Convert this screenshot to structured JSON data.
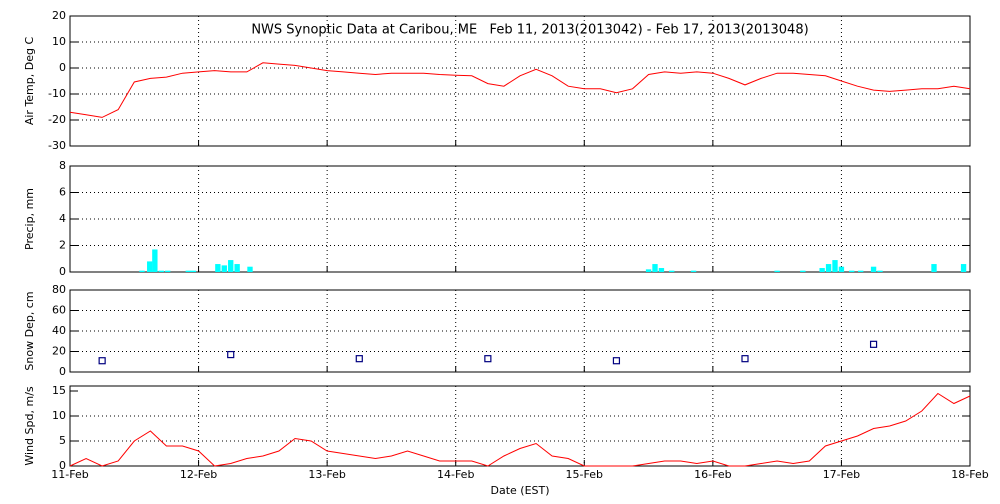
{
  "chart_data": [
    {
      "type": "line",
      "title": "NWS Synoptic Data at Caribou, ME   Feb 11, 2013(2013042) - Feb 17, 2013(2013048)",
      "ylabel": "Air Temp, Deg C",
      "color": "#ff0000",
      "grid": true,
      "xlim": [
        0,
        7
      ],
      "xticks": [
        0,
        1,
        2,
        3,
        4,
        5,
        6,
        7
      ],
      "ylim": [
        -30,
        20
      ],
      "yticks": [
        -30,
        -20,
        -10,
        0,
        10,
        20
      ],
      "x": [
        0,
        0.125,
        0.25,
        0.375,
        0.5,
        0.625,
        0.75,
        0.875,
        1,
        1.125,
        1.25,
        1.375,
        1.5,
        1.625,
        1.75,
        1.875,
        2,
        2.125,
        2.25,
        2.375,
        2.5,
        2.625,
        2.75,
        2.875,
        3,
        3.125,
        3.25,
        3.375,
        3.5,
        3.625,
        3.75,
        3.875,
        4,
        4.125,
        4.25,
        4.375,
        4.5,
        4.625,
        4.75,
        4.875,
        5,
        5.125,
        5.25,
        5.375,
        5.5,
        5.625,
        5.75,
        5.875,
        6,
        6.125,
        6.25,
        6.375,
        6.5,
        6.625,
        6.75,
        6.875,
        7
      ],
      "values": [
        -17,
        -18,
        -19,
        -16,
        -5.4,
        -4,
        -3.5,
        -2,
        -1.5,
        -1,
        -1.5,
        -1.5,
        2,
        1.5,
        1,
        0,
        -1,
        -1.5,
        -2,
        -2.5,
        -2,
        -2,
        -2,
        -2.5,
        -2.8,
        -3,
        -6,
        -7,
        -3,
        -0.5,
        -3,
        -7,
        -8,
        -8,
        -9.5,
        -8,
        -2.5,
        -1.5,
        -2,
        -1.5,
        -2,
        -4,
        -6.5,
        -4,
        -2,
        -2,
        -2.5,
        -3,
        -5,
        -7,
        -8.5,
        -9,
        -8.5,
        -8,
        -8,
        -7,
        -8
      ]
    },
    {
      "type": "bar",
      "ylabel": "Precip, mm",
      "color": "#00ffff",
      "grid": true,
      "xlim": [
        0,
        7
      ],
      "xticks": [
        0,
        1,
        2,
        3,
        4,
        5,
        6,
        7
      ],
      "ylim": [
        0,
        8
      ],
      "yticks": [
        0,
        2,
        4,
        6,
        8
      ],
      "x": [
        0.56,
        0.62,
        0.66,
        0.71,
        0.76,
        0.92,
        0.96,
        1.15,
        1.2,
        1.25,
        1.3,
        1.4,
        4.5,
        4.55,
        4.6,
        4.68,
        4.85,
        5.5,
        5.7,
        5.85,
        5.9,
        5.95,
        6.0,
        6.08,
        6.15,
        6.25,
        6.3,
        6.72,
        6.95
      ],
      "values": [
        0.1,
        0.8,
        1.7,
        0.1,
        0.1,
        0.1,
        0.1,
        0.6,
        0.5,
        0.9,
        0.6,
        0.4,
        0.2,
        0.6,
        0.3,
        0.1,
        0.1,
        0.1,
        0.1,
        0.3,
        0.6,
        0.9,
        0.4,
        0.1,
        0.1,
        0.4,
        0.1,
        0.6,
        0.6
      ]
    },
    {
      "type": "scatter",
      "ylabel": "Snow Dep, cm",
      "color": "#000080",
      "grid": true,
      "xlim": [
        0,
        7
      ],
      "xticks": [
        0,
        1,
        2,
        3,
        4,
        5,
        6,
        7
      ],
      "ylim": [
        0,
        80
      ],
      "yticks": [
        0,
        20,
        40,
        60,
        80
      ],
      "x": [
        0.25,
        1.25,
        2.25,
        3.25,
        4.25,
        5.25,
        6.25
      ],
      "values": [
        11,
        17,
        13,
        13,
        11,
        13,
        27
      ]
    },
    {
      "type": "line",
      "ylabel": "Wind Spd, m/s",
      "xlabel": "Date (EST)",
      "color": "#ff0000",
      "grid": true,
      "xlim": [
        0,
        7
      ],
      "xticks": [
        {
          "value": 0,
          "label": "11-Feb"
        },
        {
          "value": 1,
          "label": "12-Feb"
        },
        {
          "value": 2,
          "label": "13-Feb"
        },
        {
          "value": 3,
          "label": "14-Feb"
        },
        {
          "value": 4,
          "label": "15-Feb"
        },
        {
          "value": 5,
          "label": "16-Feb"
        },
        {
          "value": 6,
          "label": "17-Feb"
        },
        {
          "value": 7,
          "label": "18-Feb"
        }
      ],
      "ylim": [
        0,
        16
      ],
      "yticks": [
        0,
        5,
        10,
        15
      ],
      "x": [
        0,
        0.125,
        0.25,
        0.375,
        0.5,
        0.625,
        0.75,
        0.875,
        1,
        1.125,
        1.25,
        1.375,
        1.5,
        1.625,
        1.75,
        1.875,
        2,
        2.125,
        2.25,
        2.375,
        2.5,
        2.625,
        2.75,
        2.875,
        3,
        3.125,
        3.25,
        3.375,
        3.5,
        3.625,
        3.75,
        3.875,
        4,
        4.125,
        4.25,
        4.375,
        4.5,
        4.625,
        4.75,
        4.875,
        5,
        5.125,
        5.25,
        5.375,
        5.5,
        5.625,
        5.75,
        5.875,
        6,
        6.125,
        6.25,
        6.375,
        6.5,
        6.625,
        6.75,
        6.875,
        7
      ],
      "values": [
        0,
        1.5,
        0,
        1,
        5,
        7,
        4,
        4,
        3,
        0,
        0.5,
        1.5,
        2,
        3,
        5.5,
        5,
        3,
        2.5,
        2,
        1.5,
        2,
        3,
        2,
        1,
        1,
        1,
        0,
        2,
        3.5,
        4.5,
        2,
        1.5,
        0,
        0,
        0,
        0,
        0.5,
        1,
        1,
        0.5,
        1,
        0,
        0,
        0.5,
        1,
        0.5,
        1,
        4,
        5,
        6,
        7.5,
        8,
        9,
        11,
        14.5,
        12.5,
        14
      ]
    }
  ]
}
